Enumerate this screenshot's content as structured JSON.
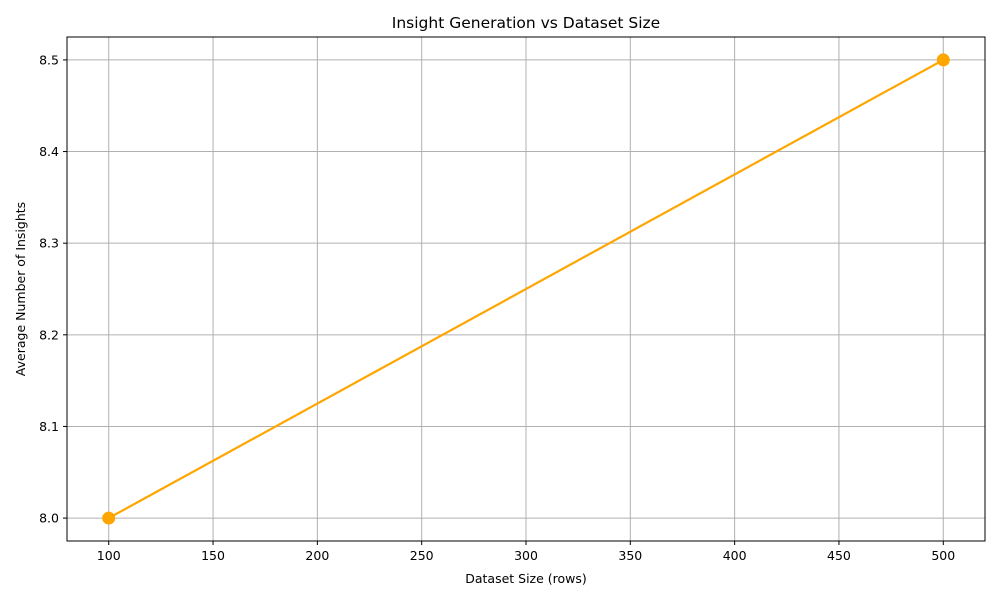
{
  "chart_data": {
    "type": "line",
    "title": "Insight Generation vs Dataset Size",
    "xlabel": "Dataset Size (rows)",
    "ylabel": "Average Number of Insights",
    "xlim": [
      80,
      520
    ],
    "ylim": [
      7.975,
      8.525
    ],
    "x_ticks": [
      100,
      150,
      200,
      250,
      300,
      350,
      400,
      450,
      500
    ],
    "x_tick_labels": [
      "100",
      "150",
      "200",
      "250",
      "300",
      "350",
      "400",
      "450",
      "500"
    ],
    "y_ticks": [
      8.0,
      8.1,
      8.2,
      8.3,
      8.4,
      8.5
    ],
    "y_tick_labels": [
      "8.0",
      "8.1",
      "8.2",
      "8.3",
      "8.4",
      "8.5"
    ],
    "grid": true,
    "legend": "none",
    "series": [
      {
        "color": "#FFA500",
        "marker": "circle",
        "points": [
          {
            "x": 100,
            "y": 8.0
          },
          {
            "x": 500,
            "y": 8.5
          }
        ]
      }
    ]
  }
}
